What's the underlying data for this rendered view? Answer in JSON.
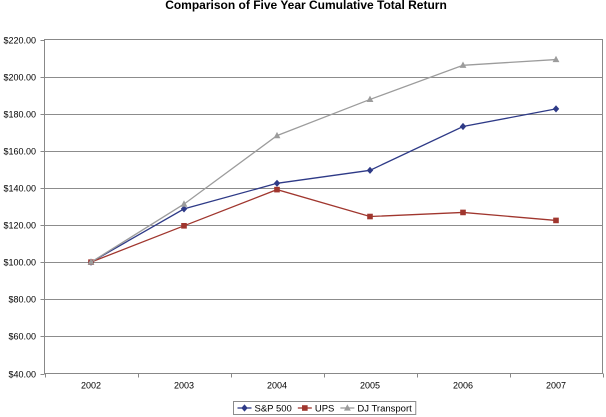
{
  "chart_data": {
    "type": "line",
    "title": "Comparison of Five Year Cumulative Total Return",
    "categories": [
      "2002",
      "2003",
      "2004",
      "2005",
      "2006",
      "2007"
    ],
    "ylim": [
      40,
      220
    ],
    "yticks": [
      40,
      60,
      80,
      100,
      120,
      140,
      160,
      180,
      200,
      220
    ],
    "ytick_labels": [
      "$40.00",
      "$60.00",
      "$80.00",
      "$100.00",
      "$120.00",
      "$140.00",
      "$160.00",
      "$180.00",
      "$200.00",
      "$220.00"
    ],
    "grid": "horizontal",
    "legend_position": "bottom",
    "series": [
      {
        "name": "S&P 500",
        "values": [
          100,
          128.7,
          142.5,
          149.5,
          173.1,
          182.6
        ],
        "color": "#2E3A87",
        "marker": "diamond"
      },
      {
        "name": "UPS",
        "values": [
          100,
          119.6,
          139.1,
          124.6,
          126.8,
          122.5
        ],
        "color": "#A0362E",
        "marker": "square"
      },
      {
        "name": "DJ Transport",
        "values": [
          100,
          131.3,
          168.2,
          187.7,
          206.1,
          209.2
        ],
        "color": "#9C9C9C",
        "marker": "triangle"
      }
    ]
  }
}
